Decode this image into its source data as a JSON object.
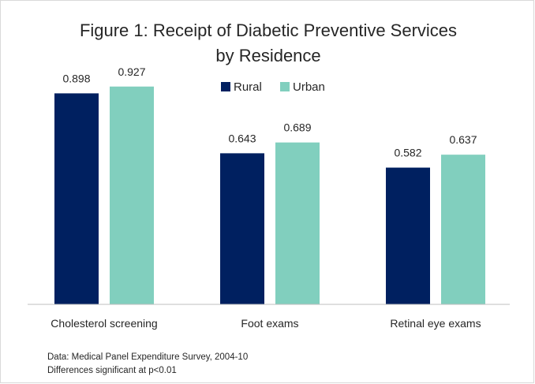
{
  "colors": {
    "rural": "#002060",
    "urban": "#81CFBE",
    "axis": "#bfbfbf",
    "text": "#262626"
  },
  "chart_data": {
    "type": "bar",
    "title_lines": [
      "Figure 1: Receipt of Diabetic Preventive Services",
      "by Residence"
    ],
    "categories": [
      "Cholesterol screening",
      "Foot exams",
      "Retinal eye exams"
    ],
    "series": [
      {
        "name": "Rural",
        "values": [
          0.898,
          0.643,
          0.582
        ]
      },
      {
        "name": "Urban",
        "values": [
          0.927,
          0.689,
          0.637
        ]
      }
    ],
    "value_labels": [
      [
        "0.898",
        "0.643",
        "0.582"
      ],
      [
        "0.927",
        "0.689",
        "0.637"
      ]
    ],
    "ylim": [
      0,
      1
    ],
    "legend_position": "top-center",
    "grid": false
  },
  "notes": [
    "Data: Medical Panel Expenditure Survey, 2004-10",
    "Differences significant at p<0.01"
  ]
}
